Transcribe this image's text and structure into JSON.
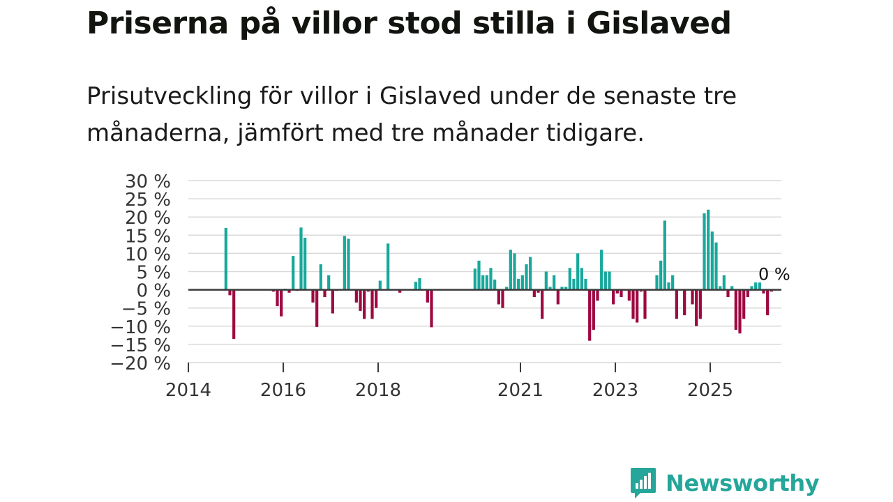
{
  "title": "Priserna på villor stod stilla i Gislaved",
  "subtitle": "Prisutveckling för villor i Gislaved under de senaste tre månaderna, jämfört med tre månader tidigare.",
  "brand": "Newsworthy",
  "colors": {
    "positive": "#18a89c",
    "negative": "#9e0840",
    "zero_line": "#3a3a3a",
    "grid": "#d9d9d9",
    "text": "#333333",
    "brand": "#26a69a"
  },
  "chart_data": {
    "type": "bar",
    "ylabel": "",
    "xlabel": "",
    "ylim": [
      -20,
      30
    ],
    "y_ticks": [
      30,
      25,
      20,
      15,
      10,
      5,
      0,
      -5,
      -10,
      -15,
      -20
    ],
    "y_tick_labels": [
      "30 %",
      "25 %",
      "20 %",
      "15 %",
      "10 %",
      "5 %",
      "0 %",
      "−5 %",
      "−10 %",
      "−15 %",
      "−20 %"
    ],
    "x_ticks": [
      2014,
      2016,
      2018,
      2021,
      2023,
      2025
    ],
    "x_tick_labels": [
      "2014",
      "2016",
      "2018",
      "2021",
      "2023",
      "2025"
    ],
    "x_unit": "month",
    "x_start": "2014-01",
    "x_end": "2026-06",
    "last_value_label": "0 %",
    "series": [
      {
        "name": "Prisutveckling",
        "points": [
          {
            "x": "2014-10",
            "value": 17
          },
          {
            "x": "2014-11",
            "value": -1.5
          },
          {
            "x": "2014-12",
            "value": -13.5
          },
          {
            "x": "2015-10",
            "value": -0.5
          },
          {
            "x": "2015-11",
            "value": -4.5
          },
          {
            "x": "2015-12",
            "value": -7.3
          },
          {
            "x": "2016-01",
            "value": 0.3
          },
          {
            "x": "2016-02",
            "value": -0.8
          },
          {
            "x": "2016-03",
            "value": 9.3
          },
          {
            "x": "2016-04",
            "value": -0.3
          },
          {
            "x": "2016-05",
            "value": 17.1
          },
          {
            "x": "2016-06",
            "value": 14.3
          },
          {
            "x": "2016-08",
            "value": -3.5
          },
          {
            "x": "2016-09",
            "value": -10.2
          },
          {
            "x": "2016-10",
            "value": 7
          },
          {
            "x": "2016-11",
            "value": -2
          },
          {
            "x": "2016-12",
            "value": 4
          },
          {
            "x": "2017-01",
            "value": -6.5
          },
          {
            "x": "2017-02",
            "value": -0.3
          },
          {
            "x": "2017-04",
            "value": 14.8
          },
          {
            "x": "2017-05",
            "value": 14
          },
          {
            "x": "2017-07",
            "value": -3.5
          },
          {
            "x": "2017-08",
            "value": -5.8
          },
          {
            "x": "2017-09",
            "value": -8
          },
          {
            "x": "2017-10",
            "value": -0.5
          },
          {
            "x": "2017-11",
            "value": -8
          },
          {
            "x": "2017-12",
            "value": -5
          },
          {
            "x": "2018-01",
            "value": 2.5
          },
          {
            "x": "2018-03",
            "value": 12.7
          },
          {
            "x": "2018-06",
            "value": -0.8
          },
          {
            "x": "2018-10",
            "value": 2.2
          },
          {
            "x": "2018-11",
            "value": 3.2
          },
          {
            "x": "2019-01",
            "value": -3.5
          },
          {
            "x": "2019-02",
            "value": -10.3
          },
          {
            "x": "2020-01",
            "value": 5.8
          },
          {
            "x": "2020-02",
            "value": 8
          },
          {
            "x": "2020-03",
            "value": 4
          },
          {
            "x": "2020-04",
            "value": 4
          },
          {
            "x": "2020-05",
            "value": 6
          },
          {
            "x": "2020-06",
            "value": 2.8
          },
          {
            "x": "2020-07",
            "value": -4
          },
          {
            "x": "2020-08",
            "value": -5
          },
          {
            "x": "2020-09",
            "value": 0.8
          },
          {
            "x": "2020-10",
            "value": 11
          },
          {
            "x": "2020-11",
            "value": 10
          },
          {
            "x": "2020-12",
            "value": 3
          },
          {
            "x": "2021-01",
            "value": 4
          },
          {
            "x": "2021-02",
            "value": 7
          },
          {
            "x": "2021-03",
            "value": 9
          },
          {
            "x": "2021-04",
            "value": -2
          },
          {
            "x": "2021-05",
            "value": -0.8
          },
          {
            "x": "2021-06",
            "value": -8
          },
          {
            "x": "2021-07",
            "value": 5
          },
          {
            "x": "2021-08",
            "value": 0.8
          },
          {
            "x": "2021-09",
            "value": 4
          },
          {
            "x": "2021-10",
            "value": -4
          },
          {
            "x": "2021-11",
            "value": 0.8
          },
          {
            "x": "2021-12",
            "value": 0.8
          },
          {
            "x": "2022-01",
            "value": 6
          },
          {
            "x": "2022-02",
            "value": 3
          },
          {
            "x": "2022-03",
            "value": 10
          },
          {
            "x": "2022-04",
            "value": 6
          },
          {
            "x": "2022-05",
            "value": 3
          },
          {
            "x": "2022-06",
            "value": -14
          },
          {
            "x": "2022-07",
            "value": -11
          },
          {
            "x": "2022-08",
            "value": -3
          },
          {
            "x": "2022-09",
            "value": 11
          },
          {
            "x": "2022-10",
            "value": 5
          },
          {
            "x": "2022-11",
            "value": 5
          },
          {
            "x": "2022-12",
            "value": -4
          },
          {
            "x": "2023-01",
            "value": -1
          },
          {
            "x": "2023-02",
            "value": -2
          },
          {
            "x": "2023-04",
            "value": -3
          },
          {
            "x": "2023-05",
            "value": -8
          },
          {
            "x": "2023-06",
            "value": -9
          },
          {
            "x": "2023-07",
            "value": -0.5
          },
          {
            "x": "2023-08",
            "value": -8
          },
          {
            "x": "2023-11",
            "value": 4
          },
          {
            "x": "2023-12",
            "value": 8
          },
          {
            "x": "2024-01",
            "value": 19
          },
          {
            "x": "2024-02",
            "value": 2
          },
          {
            "x": "2024-03",
            "value": 4
          },
          {
            "x": "2024-04",
            "value": -8
          },
          {
            "x": "2024-06",
            "value": -7
          },
          {
            "x": "2024-08",
            "value": -4
          },
          {
            "x": "2024-09",
            "value": -10
          },
          {
            "x": "2024-10",
            "value": -8
          },
          {
            "x": "2024-11",
            "value": 21
          },
          {
            "x": "2024-12",
            "value": 22
          },
          {
            "x": "2025-01",
            "value": 16
          },
          {
            "x": "2025-02",
            "value": 13
          },
          {
            "x": "2025-03",
            "value": 1
          },
          {
            "x": "2025-04",
            "value": 4
          },
          {
            "x": "2025-05",
            "value": -2
          },
          {
            "x": "2025-06",
            "value": 1
          },
          {
            "x": "2025-07",
            "value": -11
          },
          {
            "x": "2025-08",
            "value": -12
          },
          {
            "x": "2025-09",
            "value": -8
          },
          {
            "x": "2025-10",
            "value": -2
          },
          {
            "x": "2025-11",
            "value": 1
          },
          {
            "x": "2025-12",
            "value": 2
          },
          {
            "x": "2026-01",
            "value": 2
          },
          {
            "x": "2026-02",
            "value": -1
          },
          {
            "x": "2026-03",
            "value": -7
          },
          {
            "x": "2026-04",
            "value": -0.5
          }
        ]
      }
    ]
  }
}
